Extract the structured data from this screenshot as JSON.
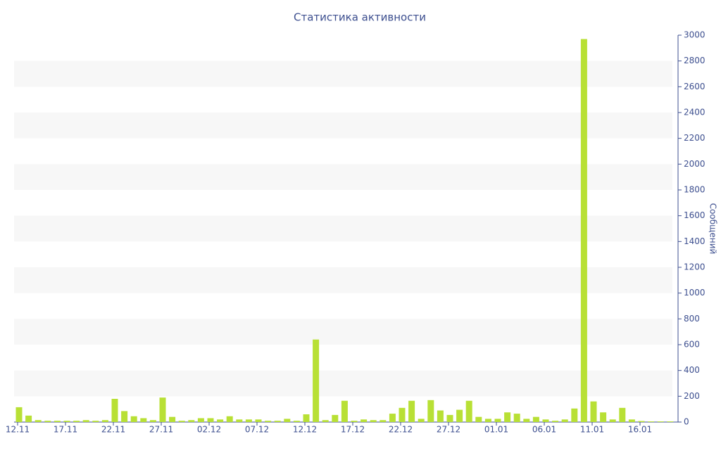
{
  "chart_data": {
    "type": "bar",
    "title": "Статистика активности",
    "y_label": "Сообщений",
    "categories": [
      "12.11",
      null,
      null,
      null,
      null,
      "17.11",
      null,
      null,
      null,
      null,
      "22.11",
      null,
      null,
      null,
      null,
      "27.11",
      null,
      null,
      null,
      null,
      "02.12",
      null,
      null,
      null,
      null,
      "07.12",
      null,
      null,
      null,
      null,
      "12.12",
      null,
      null,
      null,
      null,
      "17.12",
      null,
      null,
      null,
      null,
      "22.12",
      null,
      null,
      null,
      null,
      "27.12",
      null,
      null,
      null,
      null,
      "01.01",
      null,
      null,
      null,
      null,
      "06.01",
      null,
      null,
      null,
      null,
      "11.01",
      null,
      null,
      null,
      null,
      "16.01",
      null,
      null,
      null
    ],
    "values": [
      115,
      50,
      15,
      10,
      10,
      10,
      10,
      15,
      10,
      15,
      180,
      85,
      45,
      30,
      15,
      190,
      40,
      10,
      15,
      30,
      30,
      20,
      45,
      20,
      20,
      20,
      10,
      10,
      25,
      10,
      60,
      640,
      15,
      55,
      165,
      10,
      20,
      15,
      15,
      65,
      110,
      165,
      25,
      170,
      90,
      55,
      95,
      165,
      40,
      25,
      25,
      75,
      65,
      25,
      40,
      20,
      10,
      20,
      105,
      2970,
      160,
      75,
      20,
      110,
      20,
      8,
      5,
      5,
      5
    ],
    "color": "#b8e035",
    "ylim": [
      0,
      3000
    ],
    "yticks": [
      0,
      200,
      400,
      600,
      800,
      1000,
      1200,
      1400,
      1600,
      1800,
      2000,
      2200,
      2400,
      2600,
      2800,
      3000
    ],
    "y_axis_side": "right",
    "grid_bands": true
  }
}
